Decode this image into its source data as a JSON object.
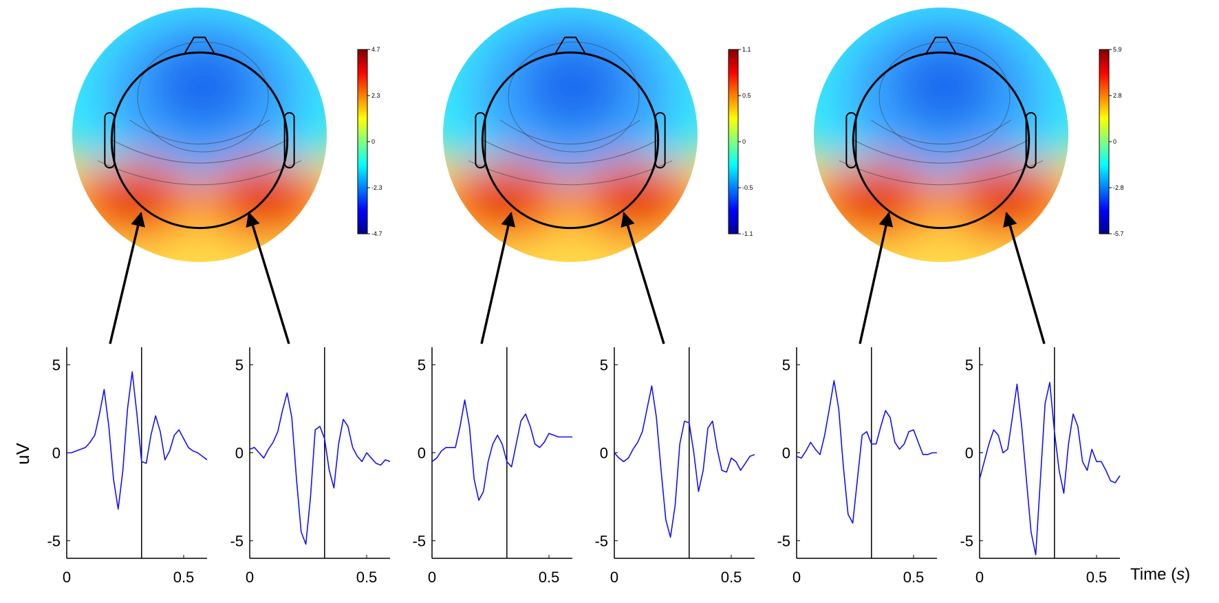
{
  "figure": {
    "ylabel": "uV",
    "xlabel_text": "Time",
    "xlabel_unit": "s"
  },
  "chart_data": {
    "type": "line",
    "x": [
      0,
      0.02,
      0.04,
      0.06,
      0.08,
      0.1,
      0.12,
      0.14,
      0.16,
      0.18,
      0.2,
      0.22,
      0.24,
      0.26,
      0.28,
      0.3,
      0.32,
      0.34,
      0.36,
      0.38,
      0.4,
      0.42,
      0.44,
      0.46,
      0.48,
      0.5,
      0.52,
      0.54,
      0.56,
      0.58,
      0.6
    ],
    "xlim": [
      0,
      0.6
    ],
    "ylim": [
      -6,
      6
    ],
    "x_ticks": [
      "0",
      "0.5"
    ],
    "y_ticks": [
      "5",
      "0",
      "-5"
    ],
    "marker_time": 0.32,
    "line_color": "#1010ff",
    "panels": [
      {
        "values": [
          0,
          0,
          0.1,
          0.2,
          0.3,
          0.6,
          1.0,
          2.2,
          3.6,
          1.5,
          -1.5,
          -3.2,
          -1.0,
          2.5,
          4.6,
          2.2,
          -0.5,
          -0.6,
          1.0,
          2.1,
          1.2,
          -0.4,
          0.1,
          1.0,
          1.3,
          0.8,
          0.3,
          0.1,
          0,
          -0.2,
          -0.4
        ]
      },
      {
        "values": [
          0.2,
          0.3,
          0,
          -0.3,
          0.2,
          0.6,
          1.2,
          2.4,
          3.4,
          2.0,
          -1.5,
          -4.5,
          -5.2,
          -2.5,
          1.3,
          1.5,
          0.8,
          -1.0,
          -2.0,
          0.5,
          1.9,
          1.5,
          0.3,
          -0.2,
          -0.5,
          0,
          -0.3,
          -0.6,
          -0.7,
          -0.4,
          -0.5
        ]
      },
      {
        "values": [
          -0.5,
          -0.3,
          0.1,
          0.3,
          0.3,
          0.3,
          1.5,
          3.0,
          1.5,
          -1.5,
          -2.7,
          -2.2,
          -0.5,
          0.5,
          1.0,
          0.5,
          -0.5,
          -0.8,
          0.5,
          1.8,
          2.2,
          1.5,
          0.5,
          0.3,
          0.6,
          1.1,
          1.0,
          0.9,
          0.9,
          0.9,
          0.9
        ]
      },
      {
        "values": [
          0,
          -0.3,
          -0.5,
          -0.3,
          0.2,
          0.6,
          1.2,
          2.5,
          3.8,
          2.0,
          -1.0,
          -3.8,
          -4.8,
          -3.0,
          0.5,
          1.8,
          1.7,
          0,
          -2.2,
          -1.0,
          1.4,
          1.8,
          0.2,
          -1.0,
          -1.1,
          -0.3,
          -0.5,
          -1.0,
          -0.6,
          -0.2,
          -0.1
        ]
      },
      {
        "values": [
          -0.2,
          -0.3,
          0.1,
          0.6,
          0.2,
          -0.1,
          1.0,
          2.5,
          4.1,
          2.5,
          -0.8,
          -3.5,
          -4.0,
          -1.5,
          1.0,
          1.2,
          0.5,
          0.5,
          1.5,
          2.4,
          2.0,
          0.6,
          0.2,
          0.5,
          1.2,
          1.3,
          0.6,
          -0.1,
          -0.1,
          0,
          0
        ]
      },
      {
        "values": [
          -1.5,
          -0.5,
          0.5,
          1.3,
          1.0,
          0,
          0.2,
          2.0,
          3.9,
          1.5,
          -1.5,
          -4.5,
          -5.8,
          -1.5,
          2.8,
          4.0,
          1.2,
          -1.0,
          -2.3,
          0.5,
          2.2,
          1.5,
          -0.5,
          -1.0,
          0.2,
          -0.5,
          -0.5,
          -1.0,
          -1.6,
          -1.7,
          -1.3
        ]
      }
    ],
    "topomaps": [
      {
        "colorbar_ticks": [
          "4.7",
          "2.3",
          "0",
          "-2.3",
          "-4.7"
        ],
        "hotspots": [
          "left",
          "right"
        ]
      },
      {
        "colorbar_ticks": [
          "1.1",
          "0.5",
          "0",
          "-0.5",
          "-1.1"
        ],
        "hotspots": [
          "left",
          "right"
        ]
      },
      {
        "colorbar_ticks": [
          "5.9",
          "2.8",
          "0",
          "-2.8",
          "-5.7"
        ],
        "hotspots": [
          "left",
          "right"
        ]
      }
    ],
    "colormap": [
      "#00008f",
      "#0000ff",
      "#0080ff",
      "#00ffff",
      "#80ff80",
      "#ffff00",
      "#ff8000",
      "#ff0000",
      "#800000"
    ]
  }
}
